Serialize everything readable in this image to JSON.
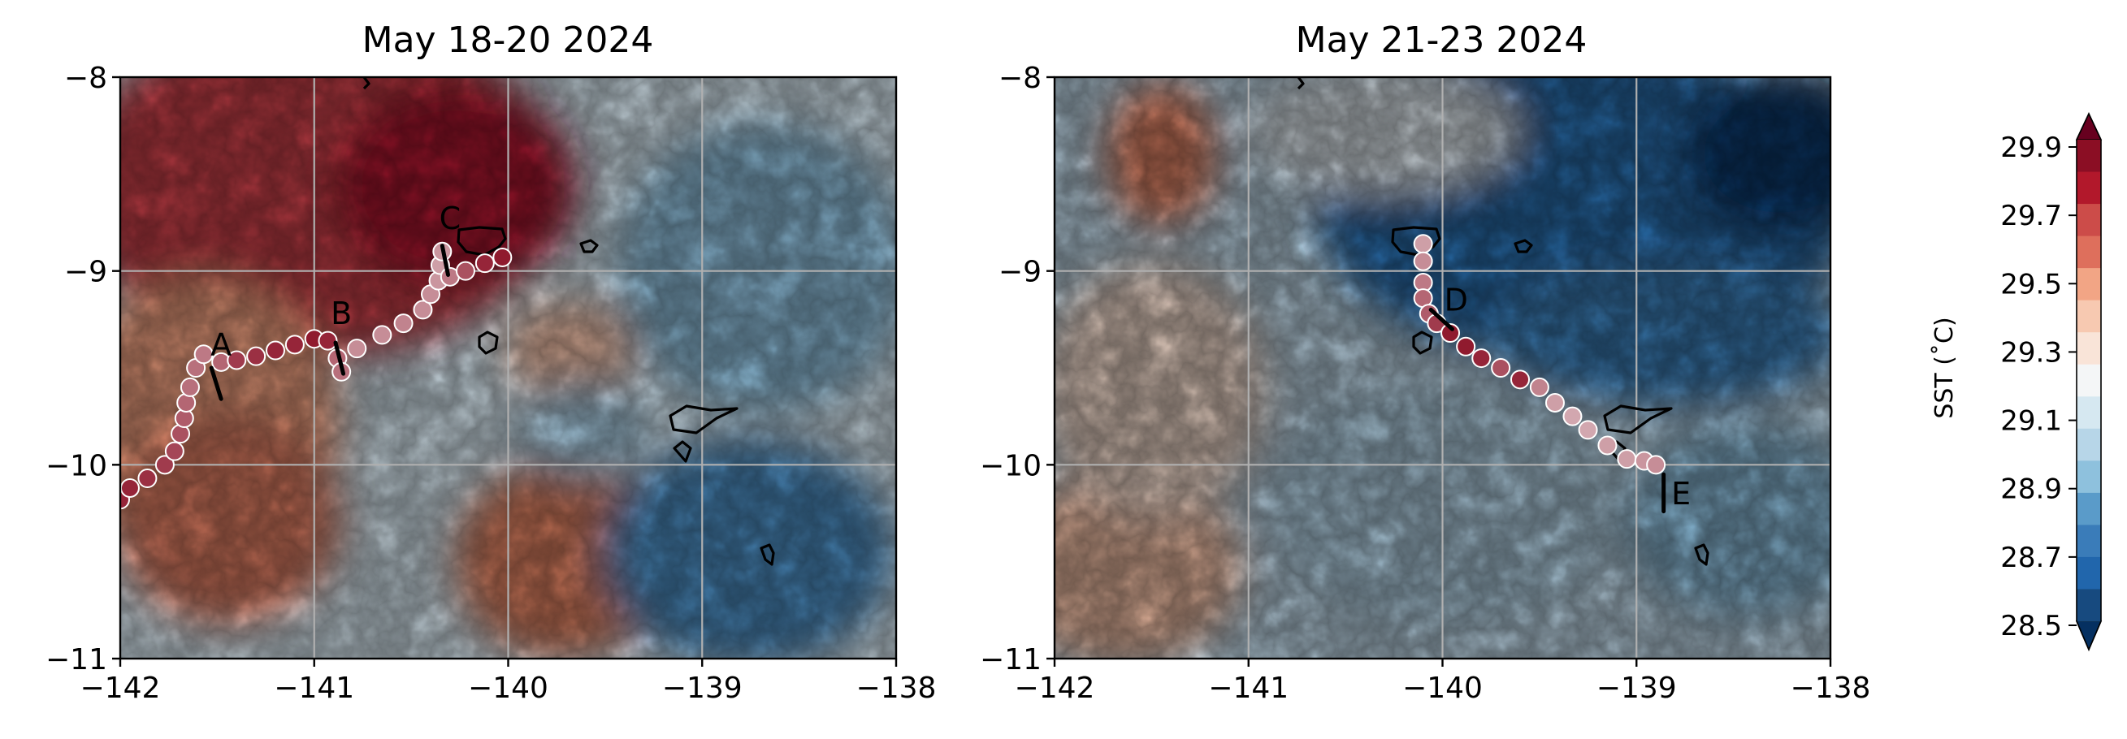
{
  "colors": {
    "cmap": [
      "#053061",
      "#174a7f",
      "#2166ac",
      "#3a7cb9",
      "#5a9bc9",
      "#8ec1dd",
      "#b7d6e8",
      "#d6e8f1",
      "#f4f6f7",
      "#f9e4d8",
      "#f7c9b1",
      "#f2a585",
      "#de6f5c",
      "#cc4c49",
      "#b2182b",
      "#8b0e24",
      "#67001f"
    ],
    "marker_low": "#f7f7f7",
    "marker_high": "#8b0e24"
  },
  "colorbar": {
    "label": "SST (˚C)",
    "ticks": [
      "29.9",
      "29.7",
      "29.5",
      "29.3",
      "29.1",
      "28.9",
      "28.7",
      "28.5"
    ]
  },
  "chart_data": [
    {
      "type": "heatmap",
      "title": "May 18-20 2024",
      "xlim": [
        -142,
        -138
      ],
      "ylim": [
        -11,
        -8
      ],
      "xticks": [
        "−142",
        "−141",
        "−140",
        "−139",
        "−138"
      ],
      "yticks": [
        "−8",
        "−9",
        "−10",
        "−11"
      ],
      "grid": true,
      "colorbar_range": [
        28.5,
        29.9
      ],
      "field_description_regions": [
        {
          "region": "northwest",
          "sst": 29.75
        },
        {
          "region": "southwest",
          "sst": 29.55
        },
        {
          "region": "east",
          "sst": 28.8
        }
      ],
      "drifter_track": [
        {
          "lon": -142.0,
          "lat": -10.18,
          "sst": 29.8
        },
        {
          "lon": -141.95,
          "lat": -10.12,
          "sst": 29.8
        },
        {
          "lon": -141.86,
          "lat": -10.07,
          "sst": 29.75
        },
        {
          "lon": -141.77,
          "lat": -10.0,
          "sst": 29.7
        },
        {
          "lon": -141.72,
          "lat": -9.93,
          "sst": 29.65
        },
        {
          "lon": -141.69,
          "lat": -9.84,
          "sst": 29.6
        },
        {
          "lon": -141.67,
          "lat": -9.76,
          "sst": 29.55
        },
        {
          "lon": -141.66,
          "lat": -9.68,
          "sst": 29.5
        },
        {
          "lon": -141.64,
          "lat": -9.6,
          "sst": 29.45
        },
        {
          "lon": -141.61,
          "lat": -9.5,
          "sst": 29.45
        },
        {
          "lon": -141.57,
          "lat": -9.43,
          "sst": 29.4
        },
        {
          "lon": -141.48,
          "lat": -9.47,
          "sst": 29.5
        },
        {
          "lon": -141.4,
          "lat": -9.46,
          "sst": 29.7
        },
        {
          "lon": -141.3,
          "lat": -9.44,
          "sst": 29.75
        },
        {
          "lon": -141.2,
          "lat": -9.41,
          "sst": 29.8
        },
        {
          "lon": -141.1,
          "lat": -9.38,
          "sst": 29.8
        },
        {
          "lon": -141.0,
          "lat": -9.35,
          "sst": 29.85
        },
        {
          "lon": -140.93,
          "lat": -9.36,
          "sst": 29.8
        },
        {
          "lon": -140.88,
          "lat": -9.45,
          "sst": 29.5
        },
        {
          "lon": -140.86,
          "lat": -9.52,
          "sst": 29.45
        },
        {
          "lon": -140.78,
          "lat": -9.4,
          "sst": 29.3
        },
        {
          "lon": -140.65,
          "lat": -9.33,
          "sst": 29.3
        },
        {
          "lon": -140.54,
          "lat": -9.27,
          "sst": 29.35
        },
        {
          "lon": -140.44,
          "lat": -9.2,
          "sst": 29.3
        },
        {
          "lon": -140.4,
          "lat": -9.12,
          "sst": 29.3
        },
        {
          "lon": -140.36,
          "lat": -9.05,
          "sst": 29.25
        },
        {
          "lon": -140.35,
          "lat": -8.97,
          "sst": 29.2
        },
        {
          "lon": -140.34,
          "lat": -8.9,
          "sst": 29.25
        },
        {
          "lon": -140.3,
          "lat": -9.03,
          "sst": 29.4
        },
        {
          "lon": -140.22,
          "lat": -9.0,
          "sst": 29.6
        },
        {
          "lon": -140.12,
          "lat": -8.96,
          "sst": 29.8
        },
        {
          "lon": -140.03,
          "lat": -8.93,
          "sst": 29.85
        }
      ],
      "segments": [
        {
          "label": "A",
          "lon": [
            -141.53,
            -141.48
          ],
          "lat": [
            -9.5,
            -9.66
          ],
          "label_lon": -141.48,
          "label_lat": -9.38
        },
        {
          "label": "B",
          "lon": [
            -140.89,
            -140.85
          ],
          "lat": [
            -9.37,
            -9.53
          ],
          "label_lon": -140.86,
          "label_lat": -9.22
        },
        {
          "label": "C",
          "lon": [
            -140.34,
            -140.31
          ],
          "lat": [
            -8.87,
            -9.02
          ],
          "label_lon": -140.3,
          "label_lat": -8.73
        }
      ]
    },
    {
      "type": "heatmap",
      "title": "May 21-23 2024",
      "xlim": [
        -142,
        -138
      ],
      "ylim": [
        -11,
        -8
      ],
      "xticks": [
        "−142",
        "−141",
        "−140",
        "−139",
        "−138"
      ],
      "yticks": [
        "−8",
        "−9",
        "−10",
        "−11"
      ],
      "grid": true,
      "colorbar_range": [
        28.5,
        29.9
      ],
      "field_description_regions": [
        {
          "region": "northeast",
          "sst": 28.7
        },
        {
          "region": "west",
          "sst": 29.0
        },
        {
          "region": "south",
          "sst": 29.05
        }
      ],
      "drifter_track": [
        {
          "lon": -140.1,
          "lat": -8.86,
          "sst": 29.2
        },
        {
          "lon": -140.1,
          "lat": -8.95,
          "sst": 29.3
        },
        {
          "lon": -140.1,
          "lat": -9.06,
          "sst": 29.4
        },
        {
          "lon": -140.1,
          "lat": -9.14,
          "sst": 29.5
        },
        {
          "lon": -140.07,
          "lat": -9.22,
          "sst": 29.55
        },
        {
          "lon": -140.03,
          "lat": -9.27,
          "sst": 29.7
        },
        {
          "lon": -139.96,
          "lat": -9.32,
          "sst": 29.85
        },
        {
          "lon": -139.88,
          "lat": -9.39,
          "sst": 29.85
        },
        {
          "lon": -139.8,
          "lat": -9.45,
          "sst": 29.8
        },
        {
          "lon": -139.7,
          "lat": -9.5,
          "sst": 29.6
        },
        {
          "lon": -139.6,
          "lat": -9.56,
          "sst": 29.8
        },
        {
          "lon": -139.5,
          "lat": -9.6,
          "sst": 29.35
        },
        {
          "lon": -139.42,
          "lat": -9.68,
          "sst": 29.2
        },
        {
          "lon": -139.33,
          "lat": -9.75,
          "sst": 29.15
        },
        {
          "lon": -139.25,
          "lat": -9.82,
          "sst": 29.15
        },
        {
          "lon": -139.15,
          "lat": -9.9,
          "sst": 29.2
        },
        {
          "lon": -139.05,
          "lat": -9.97,
          "sst": 29.2
        },
        {
          "lon": -138.96,
          "lat": -9.98,
          "sst": 29.25
        },
        {
          "lon": -138.9,
          "lat": -10.0,
          "sst": 29.3
        }
      ],
      "segments": [
        {
          "label": "D",
          "lon": [
            -140.06,
            -139.95
          ],
          "lat": [
            -9.2,
            -9.3
          ],
          "label_lon": -139.93,
          "label_lat": -9.15
        },
        {
          "label": "E",
          "lon": [
            -138.86,
            -138.86
          ],
          "lat": [
            -10.05,
            -10.24
          ],
          "label_lon": -138.77,
          "label_lat": -10.15
        }
      ]
    }
  ]
}
